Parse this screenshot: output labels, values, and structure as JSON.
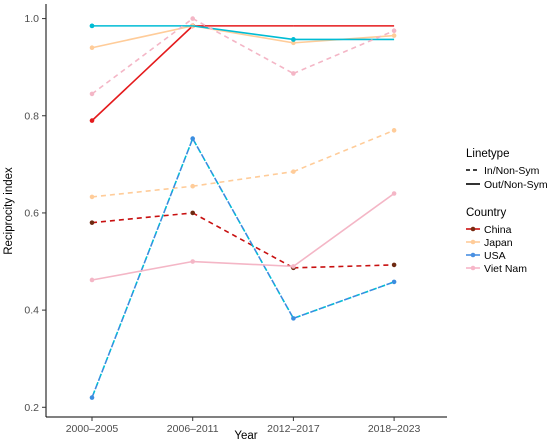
{
  "chart_data": {
    "type": "line",
    "xlabel": "Year",
    "ylabel": "Reciprocity index",
    "categories": [
      "2000–2005",
      "2006–2011",
      "2012–2017",
      "2018–2023"
    ],
    "ylim": [
      0.18,
      1.03
    ],
    "yticks": [
      "0.2",
      "0.4",
      "0.6",
      "0.8",
      "1.0"
    ],
    "grid": false,
    "legend_position": "right",
    "linetype_legend": {
      "title": "Linetype",
      "items": [
        {
          "label": "In/Non-Sym",
          "dash": "dashed"
        },
        {
          "label": "Out/Non-Sym",
          "dash": "solid"
        }
      ]
    },
    "color_legend": {
      "title": "Country",
      "items": [
        {
          "label": "China",
          "color": "#cc1111",
          "marker": "#7a2a10"
        },
        {
          "label": "Japan",
          "color": "#ffcc99",
          "marker": "#ffcc99"
        },
        {
          "label": "USA",
          "color": "#4a90e2",
          "marker": "#4a90e2"
        },
        {
          "label": "Viet Nam",
          "color": "#f7b6c8",
          "marker": "#f7b6c8"
        }
      ]
    },
    "series": [
      {
        "country": "China",
        "linetype": "Out/Non-Sym",
        "color": "#e41a1c",
        "values": [
          0.79,
          0.985,
          0.985,
          0.985
        ]
      },
      {
        "country": "China",
        "linetype": "In/Non-Sym",
        "color": "#c81010",
        "marker": "#6e2a12",
        "values": [
          0.58,
          0.6,
          0.487,
          0.493
        ]
      },
      {
        "country": "Japan",
        "linetype": "Out/Non-Sym",
        "color": "#ffcc99",
        "values": [
          0.94,
          0.985,
          0.95,
          0.965
        ]
      },
      {
        "country": "Japan",
        "linetype": "In/Non-Sym",
        "color": "#ffcc99",
        "values": [
          0.633,
          0.655,
          0.685,
          0.77
        ]
      },
      {
        "country": "USA",
        "linetype": "Out/Non-Sym",
        "color": "#00bcd4",
        "values": [
          0.985,
          0.985,
          0.957,
          0.957
        ]
      },
      {
        "country": "USA",
        "linetype": "In/Non-Sym",
        "color": "#3b8de0",
        "accent": "#00bcd4",
        "values": [
          0.22,
          0.753,
          0.383,
          0.458
        ]
      },
      {
        "country": "Viet Nam",
        "linetype": "Out/Non-Sym",
        "color": "#f4b6c6",
        "values": [
          0.462,
          0.5,
          0.49,
          0.64
        ]
      },
      {
        "country": "Viet Nam",
        "linetype": "In/Non-Sym",
        "color": "#f4b6c6",
        "values": [
          0.845,
          1.0,
          0.887,
          0.975
        ]
      }
    ]
  }
}
